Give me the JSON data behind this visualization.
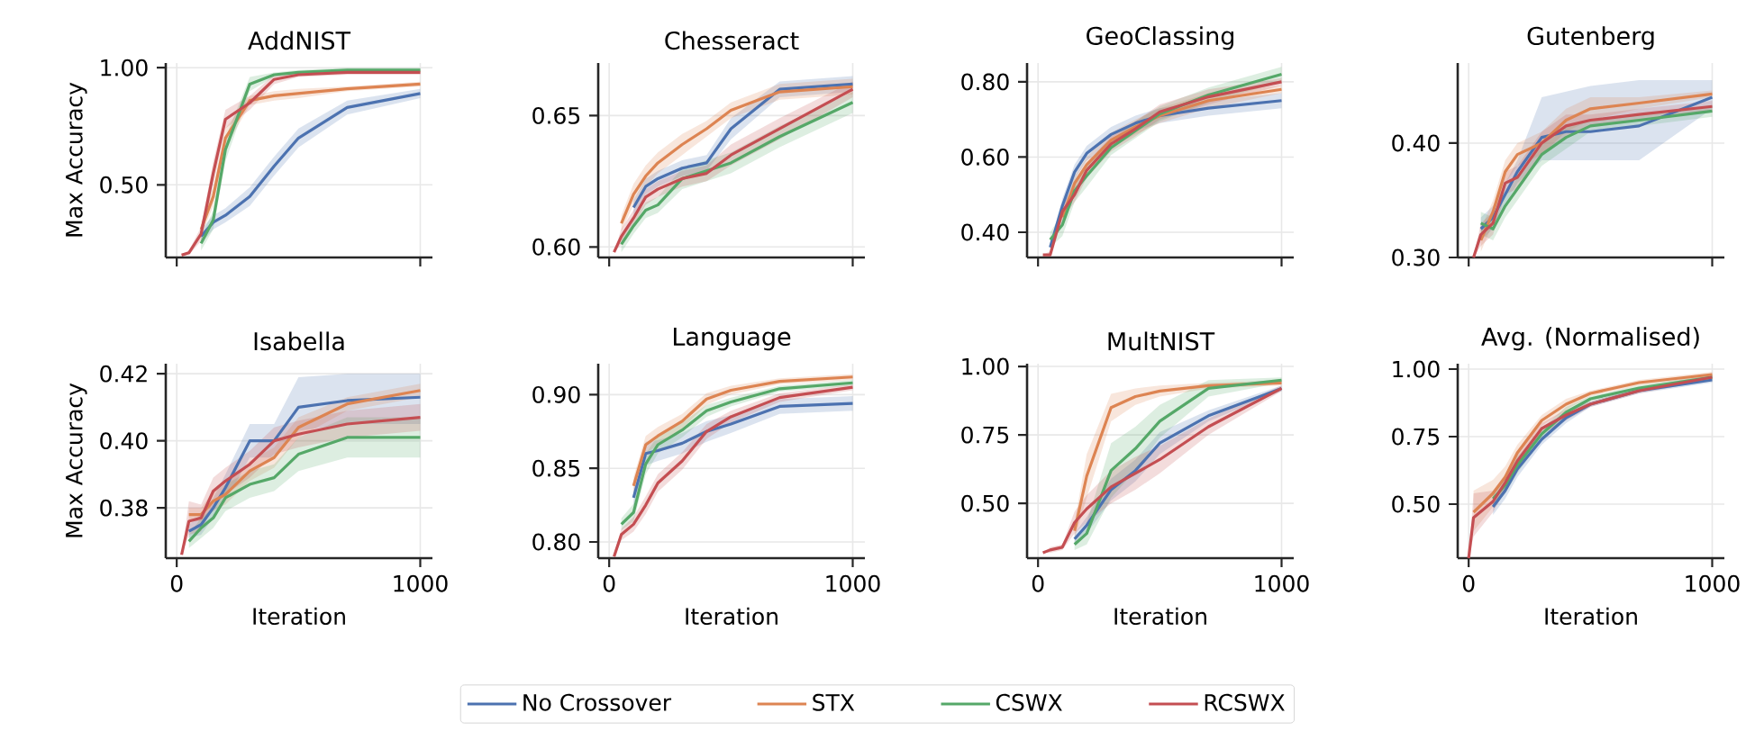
{
  "chart_data": [
    {
      "type": "line",
      "title": "AddNIST",
      "ylabel": "Max Accuracy",
      "x": [
        20,
        50,
        100,
        150,
        200,
        300,
        400,
        500,
        700,
        1000
      ],
      "xlim": [
        -45,
        1050
      ],
      "xticks": [
        0,
        1000
      ],
      "ylim": [
        0.19,
        1.02
      ],
      "yticks": [
        {
          "value": 0.5,
          "label": "0.50"
        },
        {
          "value": 1.0,
          "label": "1.00"
        }
      ],
      "tick_labels": "y",
      "grid": true,
      "series": [
        {
          "color": "#4c72b0",
          "values": [
            null,
            null,
            0.28,
            0.34,
            0.37,
            0.45,
            0.58,
            0.7,
            0.83,
            0.89
          ],
          "lower": [
            null,
            null,
            0.25,
            0.31,
            0.34,
            0.41,
            0.54,
            0.66,
            0.8,
            0.87
          ],
          "upper": [
            null,
            null,
            0.31,
            0.37,
            0.4,
            0.49,
            0.62,
            0.74,
            0.86,
            0.91
          ]
        },
        {
          "color": "#dd8452",
          "values": [
            null,
            null,
            0.31,
            0.45,
            0.7,
            0.86,
            0.88,
            0.89,
            0.91,
            0.93
          ],
          "lower": [
            null,
            null,
            0.28,
            0.41,
            0.66,
            0.84,
            0.86,
            0.87,
            0.9,
            0.92
          ],
          "upper": [
            null,
            null,
            0.34,
            0.49,
            0.74,
            0.88,
            0.9,
            0.91,
            0.92,
            0.94
          ]
        },
        {
          "color": "#55a868",
          "values": [
            null,
            null,
            0.25,
            0.35,
            0.65,
            0.93,
            0.97,
            0.98,
            0.99,
            0.99
          ],
          "lower": [
            null,
            null,
            0.22,
            0.31,
            0.6,
            0.9,
            0.96,
            0.97,
            0.98,
            0.98
          ],
          "upper": [
            null,
            null,
            0.28,
            0.39,
            0.7,
            0.96,
            0.98,
            0.99,
            1.0,
            1.0
          ]
        },
        {
          "color": "#c44e52",
          "values": [
            0.2,
            0.21,
            0.29,
            0.55,
            0.78,
            0.85,
            0.95,
            0.97,
            0.98,
            0.98
          ],
          "lower": [
            0.2,
            0.2,
            0.26,
            0.5,
            0.74,
            0.82,
            0.93,
            0.96,
            0.97,
            0.97
          ],
          "upper": [
            0.2,
            0.22,
            0.32,
            0.6,
            0.82,
            0.88,
            0.97,
            0.98,
            0.99,
            0.99
          ]
        }
      ]
    },
    {
      "type": "line",
      "title": "Chesseract",
      "x": [
        20,
        50,
        100,
        150,
        200,
        300,
        400,
        500,
        700,
        1000
      ],
      "xlim": [
        -45,
        1050
      ],
      "xticks": [
        0,
        1000
      ],
      "ylim": [
        0.596,
        0.67
      ],
      "yticks": [
        {
          "value": 0.6,
          "label": "0.60"
        },
        0.65
      ],
      "tick_labels": "y",
      "grid": true,
      "series": [
        {
          "color": "#4c72b0",
          "values": [
            null,
            null,
            0.615,
            0.623,
            0.626,
            0.63,
            0.632,
            0.645,
            0.66,
            0.662
          ],
          "lower": [
            null,
            null,
            0.612,
            0.62,
            0.623,
            0.627,
            0.629,
            0.641,
            0.657,
            0.659
          ],
          "upper": [
            null,
            null,
            0.618,
            0.626,
            0.629,
            0.633,
            0.635,
            0.649,
            0.663,
            0.665
          ]
        },
        {
          "color": "#dd8452",
          "values": [
            null,
            0.609,
            0.62,
            0.627,
            0.632,
            0.639,
            0.645,
            0.652,
            0.659,
            0.661
          ],
          "lower": [
            null,
            0.606,
            0.616,
            0.623,
            0.628,
            0.635,
            0.642,
            0.649,
            0.656,
            0.658
          ],
          "upper": [
            null,
            0.612,
            0.624,
            0.631,
            0.636,
            0.643,
            0.648,
            0.655,
            0.662,
            0.664
          ]
        },
        {
          "color": "#55a868",
          "values": [
            null,
            0.601,
            0.608,
            0.614,
            0.616,
            0.626,
            0.629,
            0.632,
            0.642,
            0.655
          ],
          "lower": [
            null,
            0.598,
            0.605,
            0.611,
            0.613,
            0.622,
            0.625,
            0.628,
            0.638,
            0.651
          ],
          "upper": [
            null,
            0.604,
            0.611,
            0.617,
            0.619,
            0.63,
            0.633,
            0.636,
            0.646,
            0.659
          ]
        },
        {
          "color": "#c44e52",
          "values": [
            0.598,
            0.604,
            0.611,
            0.619,
            0.622,
            0.626,
            0.628,
            0.635,
            0.645,
            0.66
          ],
          "lower": [
            0.598,
            0.601,
            0.608,
            0.616,
            0.619,
            0.623,
            0.625,
            0.631,
            0.641,
            0.657
          ],
          "upper": [
            0.598,
            0.607,
            0.614,
            0.622,
            0.625,
            0.629,
            0.631,
            0.639,
            0.649,
            0.663
          ]
        }
      ]
    },
    {
      "type": "line",
      "title": "GeoClassing",
      "x": [
        20,
        50,
        100,
        150,
        200,
        300,
        400,
        500,
        700,
        1000
      ],
      "xlim": [
        -45,
        1050
      ],
      "xticks": [
        0,
        1000
      ],
      "ylim": [
        0.333,
        0.85
      ],
      "yticks": [
        {
          "value": 0.4,
          "label": "0.40"
        },
        {
          "value": 0.6,
          "label": "0.60"
        },
        {
          "value": 0.8,
          "label": "0.80"
        }
      ],
      "tick_labels": "y",
      "grid": true,
      "series": [
        {
          "color": "#4c72b0",
          "values": [
            null,
            0.36,
            0.47,
            0.56,
            0.61,
            0.66,
            0.69,
            0.71,
            0.73,
            0.75
          ],
          "lower": [
            null,
            0.35,
            0.45,
            0.54,
            0.59,
            0.64,
            0.67,
            0.69,
            0.71,
            0.73
          ],
          "upper": [
            null,
            0.37,
            0.49,
            0.58,
            0.63,
            0.68,
            0.71,
            0.73,
            0.75,
            0.77
          ]
        },
        {
          "color": "#dd8452",
          "values": [
            null,
            null,
            0.44,
            0.53,
            0.58,
            0.645,
            0.68,
            0.71,
            0.75,
            0.78
          ],
          "lower": [
            null,
            null,
            0.42,
            0.51,
            0.56,
            0.625,
            0.66,
            0.69,
            0.73,
            0.77
          ],
          "upper": [
            null,
            null,
            0.46,
            0.55,
            0.6,
            0.665,
            0.7,
            0.73,
            0.77,
            0.79
          ]
        },
        {
          "color": "#55a868",
          "values": [
            null,
            0.38,
            0.42,
            0.51,
            0.55,
            0.625,
            0.67,
            0.715,
            0.765,
            0.82
          ],
          "lower": [
            null,
            0.36,
            0.39,
            0.48,
            0.52,
            0.605,
            0.65,
            0.695,
            0.745,
            0.8
          ],
          "upper": [
            null,
            0.4,
            0.45,
            0.54,
            0.58,
            0.645,
            0.695,
            0.735,
            0.785,
            0.84
          ]
        },
        {
          "color": "#c44e52",
          "values": [
            0.34,
            0.34,
            0.455,
            0.5,
            0.565,
            0.635,
            0.675,
            0.72,
            0.76,
            0.8
          ],
          "lower": [
            0.34,
            0.34,
            0.435,
            0.48,
            0.545,
            0.615,
            0.655,
            0.7,
            0.74,
            0.79
          ],
          "upper": [
            0.34,
            0.35,
            0.475,
            0.52,
            0.585,
            0.655,
            0.695,
            0.74,
            0.78,
            0.81
          ]
        }
      ]
    },
    {
      "type": "line",
      "title": "Gutenberg",
      "x": [
        20,
        50,
        100,
        150,
        200,
        300,
        400,
        500,
        700,
        1000
      ],
      "xlim": [
        -45,
        1050
      ],
      "xticks": [
        0,
        1000
      ],
      "ylim": [
        0.3,
        0.47
      ],
      "yticks": [
        {
          "value": 0.3,
          "label": "0.30"
        },
        {
          "value": 0.4,
          "label": "0.40"
        }
      ],
      "tick_labels": "y",
      "grid": true,
      "series": [
        {
          "color": "#4c72b0",
          "values": [
            null,
            0.325,
            0.335,
            0.355,
            0.375,
            0.405,
            0.41,
            0.41,
            0.415,
            0.44
          ],
          "lower": [
            null,
            0.315,
            0.325,
            0.345,
            0.365,
            0.385,
            0.385,
            0.385,
            0.385,
            0.43
          ],
          "upper": [
            null,
            0.335,
            0.345,
            0.365,
            0.385,
            0.44,
            0.445,
            0.45,
            0.455,
            0.455
          ]
        },
        {
          "color": "#dd8452",
          "values": [
            null,
            0.315,
            0.34,
            0.375,
            0.39,
            0.4,
            0.42,
            0.43,
            0.435,
            0.443
          ],
          "lower": [
            null,
            0.305,
            0.33,
            0.365,
            0.38,
            0.39,
            0.41,
            0.42,
            0.43,
            0.44
          ],
          "upper": [
            null,
            0.325,
            0.35,
            0.385,
            0.4,
            0.41,
            0.43,
            0.44,
            0.44,
            0.446
          ]
        },
        {
          "color": "#55a868",
          "values": [
            null,
            0.33,
            0.325,
            0.345,
            0.36,
            0.39,
            0.405,
            0.415,
            0.42,
            0.428
          ],
          "lower": [
            null,
            0.32,
            0.315,
            0.335,
            0.35,
            0.38,
            0.395,
            0.41,
            0.415,
            0.423
          ],
          "upper": [
            null,
            0.34,
            0.335,
            0.355,
            0.37,
            0.4,
            0.415,
            0.42,
            0.425,
            0.433
          ]
        },
        {
          "color": "#c44e52",
          "values": [
            0.3,
            0.32,
            0.33,
            0.365,
            0.37,
            0.4,
            0.415,
            0.42,
            0.425,
            0.432
          ],
          "lower": [
            0.3,
            0.31,
            0.32,
            0.355,
            0.36,
            0.39,
            0.405,
            0.415,
            0.42,
            0.427
          ],
          "upper": [
            0.3,
            0.33,
            0.34,
            0.375,
            0.38,
            0.41,
            0.425,
            0.425,
            0.43,
            0.437
          ]
        }
      ]
    },
    {
      "type": "line",
      "title": "Isabella",
      "ylabel": "Max Accuracy",
      "xlabel": "Iteration",
      "x": [
        20,
        50,
        100,
        150,
        200,
        300,
        400,
        500,
        700,
        1000
      ],
      "xlim": [
        -45,
        1050
      ],
      "xticks": [
        0,
        1000
      ],
      "ylim": [
        0.365,
        0.423
      ],
      "yticks": [
        0.38,
        {
          "value": 0.4,
          "label": "0.40"
        },
        0.42
      ],
      "grid": true,
      "series": [
        {
          "color": "#4c72b0",
          "values": [
            null,
            0.373,
            0.375,
            0.38,
            0.386,
            0.4,
            0.4,
            0.41,
            0.412,
            0.413
          ],
          "lower": [
            null,
            0.371,
            0.372,
            0.377,
            0.382,
            0.395,
            0.395,
            0.403,
            0.405,
            0.405
          ],
          "upper": [
            null,
            0.375,
            0.378,
            0.383,
            0.39,
            0.405,
            0.405,
            0.419,
            0.42,
            0.42
          ]
        },
        {
          "color": "#dd8452",
          "values": [
            null,
            0.378,
            0.378,
            0.382,
            0.384,
            0.391,
            0.395,
            0.404,
            0.411,
            0.415
          ],
          "lower": [
            null,
            0.376,
            0.376,
            0.379,
            0.381,
            0.388,
            0.392,
            0.401,
            0.409,
            0.413
          ],
          "upper": [
            null,
            0.38,
            0.38,
            0.385,
            0.387,
            0.394,
            0.398,
            0.407,
            0.413,
            0.417
          ]
        },
        {
          "color": "#55a868",
          "values": [
            null,
            0.37,
            0.374,
            0.377,
            0.383,
            0.387,
            0.389,
            0.396,
            0.401,
            0.401
          ],
          "lower": [
            null,
            0.368,
            0.371,
            0.374,
            0.379,
            0.383,
            0.385,
            0.391,
            0.395,
            0.395
          ],
          "upper": [
            null,
            0.372,
            0.377,
            0.38,
            0.387,
            0.391,
            0.393,
            0.401,
            0.407,
            0.407
          ]
        },
        {
          "color": "#c44e52",
          "values": [
            0.366,
            0.376,
            0.377,
            0.385,
            0.388,
            0.393,
            0.4,
            0.402,
            0.405,
            0.407
          ],
          "lower": [
            0.366,
            0.372,
            0.373,
            0.381,
            0.384,
            0.389,
            0.396,
            0.398,
            0.401,
            0.403
          ],
          "upper": [
            0.366,
            0.382,
            0.381,
            0.389,
            0.392,
            0.397,
            0.404,
            0.406,
            0.409,
            0.411
          ]
        }
      ]
    },
    {
      "type": "line",
      "title": "Language",
      "xlabel": "Iteration",
      "x": [
        20,
        50,
        100,
        150,
        200,
        300,
        400,
        500,
        700,
        1000
      ],
      "xlim": [
        -45,
        1050
      ],
      "xticks": [
        0,
        1000
      ],
      "ylim": [
        0.789,
        0.921
      ],
      "yticks": [
        {
          "value": 0.8,
          "label": "0.80"
        },
        0.85,
        {
          "value": 0.9,
          "label": "0.90"
        }
      ],
      "grid": true,
      "series": [
        {
          "color": "#4c72b0",
          "values": [
            null,
            null,
            0.83,
            0.86,
            0.862,
            0.867,
            0.875,
            0.88,
            0.892,
            0.894
          ],
          "lower": [
            null,
            null,
            0.824,
            0.852,
            0.855,
            0.86,
            0.868,
            0.874,
            0.887,
            0.889
          ],
          "upper": [
            null,
            null,
            0.836,
            0.868,
            0.869,
            0.874,
            0.882,
            0.886,
            0.897,
            0.899
          ]
        },
        {
          "color": "#dd8452",
          "values": [
            null,
            null,
            0.838,
            0.866,
            0.872,
            0.882,
            0.897,
            0.903,
            0.909,
            0.912
          ],
          "lower": [
            null,
            null,
            0.832,
            0.86,
            0.866,
            0.877,
            0.893,
            0.9,
            0.907,
            0.91
          ],
          "upper": [
            null,
            null,
            0.844,
            0.872,
            0.878,
            0.887,
            0.901,
            0.906,
            0.911,
            0.914
          ]
        },
        {
          "color": "#55a868",
          "values": [
            null,
            0.812,
            0.82,
            0.853,
            0.866,
            0.876,
            0.889,
            0.895,
            0.904,
            0.908
          ],
          "lower": [
            null,
            0.808,
            0.814,
            0.846,
            0.86,
            0.871,
            0.885,
            0.892,
            0.902,
            0.906
          ],
          "upper": [
            null,
            0.816,
            0.826,
            0.86,
            0.872,
            0.881,
            0.893,
            0.898,
            0.906,
            0.91
          ]
        },
        {
          "color": "#c44e52",
          "values": [
            0.79,
            0.805,
            0.812,
            0.825,
            0.84,
            0.855,
            0.875,
            0.885,
            0.898,
            0.905
          ],
          "lower": [
            0.79,
            0.801,
            0.807,
            0.819,
            0.834,
            0.849,
            0.87,
            0.881,
            0.895,
            0.903
          ],
          "upper": [
            0.79,
            0.809,
            0.817,
            0.831,
            0.846,
            0.861,
            0.88,
            0.889,
            0.901,
            0.907
          ]
        }
      ]
    },
    {
      "type": "line",
      "title": "MultNIST",
      "xlabel": "Iteration",
      "x": [
        20,
        50,
        100,
        150,
        200,
        300,
        400,
        500,
        700,
        1000
      ],
      "xlim": [
        -45,
        1050
      ],
      "xticks": [
        0,
        1000
      ],
      "ylim": [
        0.3,
        1.01
      ],
      "yticks": [
        {
          "value": 0.5,
          "label": "0.50"
        },
        0.75,
        {
          "value": 1.0,
          "label": "1.00"
        }
      ],
      "grid": true,
      "series": [
        {
          "color": "#4c72b0",
          "values": [
            null,
            null,
            null,
            0.37,
            0.42,
            0.55,
            0.62,
            0.72,
            0.82,
            0.92
          ],
          "lower": [
            null,
            null,
            null,
            0.35,
            0.39,
            0.51,
            0.58,
            0.68,
            0.8,
            0.91
          ],
          "upper": [
            null,
            null,
            null,
            0.39,
            0.45,
            0.59,
            0.66,
            0.76,
            0.84,
            0.93
          ]
        },
        {
          "color": "#dd8452",
          "values": [
            null,
            null,
            null,
            0.4,
            0.6,
            0.85,
            0.89,
            0.91,
            0.93,
            0.94
          ],
          "lower": [
            null,
            null,
            null,
            0.37,
            0.52,
            0.8,
            0.86,
            0.89,
            0.92,
            0.93
          ],
          "upper": [
            null,
            null,
            null,
            0.43,
            0.68,
            0.9,
            0.92,
            0.93,
            0.94,
            0.95
          ]
        },
        {
          "color": "#55a868",
          "values": [
            null,
            null,
            null,
            0.35,
            0.39,
            0.62,
            0.7,
            0.8,
            0.92,
            0.95
          ],
          "lower": [
            null,
            null,
            null,
            0.33,
            0.35,
            0.52,
            0.62,
            0.74,
            0.89,
            0.94
          ],
          "upper": [
            null,
            null,
            null,
            0.37,
            0.43,
            0.72,
            0.78,
            0.86,
            0.95,
            0.96
          ]
        },
        {
          "color": "#c44e52",
          "values": [
            0.32,
            0.33,
            0.34,
            0.43,
            0.48,
            0.56,
            0.61,
            0.66,
            0.78,
            0.92
          ],
          "lower": [
            0.32,
            0.32,
            0.33,
            0.39,
            0.43,
            0.5,
            0.55,
            0.61,
            0.75,
            0.91
          ],
          "upper": [
            0.32,
            0.34,
            0.35,
            0.47,
            0.53,
            0.62,
            0.67,
            0.71,
            0.81,
            0.93
          ]
        }
      ]
    },
    {
      "type": "line",
      "title": "Avg. (Normalised)",
      "xlabel": "Iteration",
      "x": [
        0,
        20,
        100,
        150,
        200,
        300,
        400,
        500,
        700,
        1000
      ],
      "xlim": [
        -45,
        1050
      ],
      "xticks": [
        0,
        1000
      ],
      "ylim": [
        0.3,
        1.02
      ],
      "yticks": [
        {
          "value": 0.5,
          "label": "0.50"
        },
        0.75,
        {
          "value": 1.0,
          "label": "1.00"
        }
      ],
      "grid": true,
      "legend": "bottom",
      "series": [
        {
          "name": "No Crossover",
          "color": "#4c72b0",
          "values": [
            null,
            null,
            0.49,
            0.55,
            0.63,
            0.74,
            0.82,
            0.87,
            0.92,
            0.96
          ],
          "lower": [
            null,
            null,
            0.46,
            0.52,
            0.6,
            0.72,
            0.8,
            0.86,
            0.91,
            0.95
          ],
          "upper": [
            null,
            null,
            0.52,
            0.58,
            0.66,
            0.76,
            0.84,
            0.88,
            0.93,
            0.97
          ]
        },
        {
          "name": "STX",
          "color": "#dd8452",
          "values": [
            null,
            0.47,
            0.54,
            0.6,
            0.69,
            0.81,
            0.87,
            0.91,
            0.95,
            0.98
          ],
          "lower": [
            null,
            0.4,
            0.49,
            0.56,
            0.66,
            0.79,
            0.85,
            0.9,
            0.94,
            0.97
          ],
          "upper": [
            null,
            0.55,
            0.59,
            0.64,
            0.72,
            0.83,
            0.89,
            0.92,
            0.96,
            0.99
          ]
        },
        {
          "name": "CSWX",
          "color": "#55a868",
          "values": [
            null,
            null,
            0.52,
            0.57,
            0.645,
            0.76,
            0.84,
            0.89,
            0.93,
            0.97
          ],
          "lower": [
            null,
            null,
            0.49,
            0.54,
            0.615,
            0.74,
            0.82,
            0.88,
            0.92,
            0.96
          ],
          "upper": [
            null,
            null,
            0.55,
            0.6,
            0.675,
            0.78,
            0.86,
            0.9,
            0.94,
            0.98
          ]
        },
        {
          "name": "RCSWX",
          "color": "#c44e52",
          "values": [
            0.3,
            0.45,
            0.51,
            0.58,
            0.66,
            0.78,
            0.83,
            0.87,
            0.92,
            0.97
          ],
          "lower": [
            0.3,
            0.38,
            0.47,
            0.55,
            0.63,
            0.76,
            0.81,
            0.86,
            0.91,
            0.96
          ],
          "upper": [
            0.3,
            0.54,
            0.55,
            0.61,
            0.69,
            0.8,
            0.85,
            0.88,
            0.93,
            0.98
          ]
        }
      ]
    }
  ]
}
